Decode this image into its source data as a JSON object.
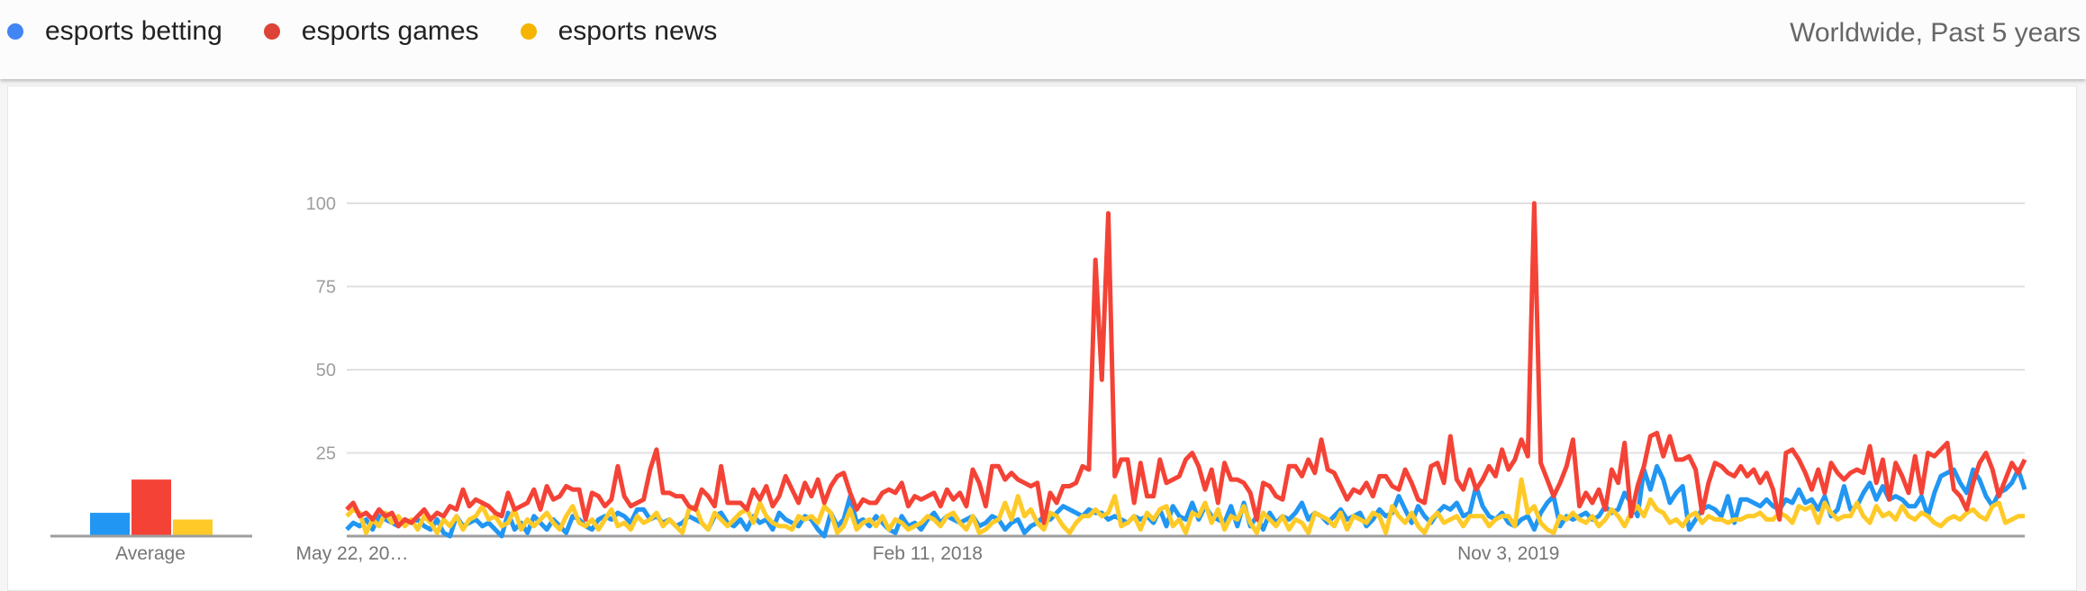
{
  "header": {
    "scope": "Worldwide, Past 5 years",
    "legend": [
      {
        "label": "esports betting",
        "color": "#4285F4"
      },
      {
        "label": "esports games",
        "color": "#DB4437"
      },
      {
        "label": "esports news",
        "color": "#F4B400"
      }
    ]
  },
  "chart_data": [
    {
      "type": "bar",
      "title": "",
      "categories": [
        "esports betting",
        "esports games",
        "esports news"
      ],
      "values": [
        7,
        17,
        5
      ],
      "xlabel": "Average",
      "colors": [
        "#2196F3",
        "#F44336",
        "#FFCA28"
      ]
    },
    {
      "type": "line",
      "title": "",
      "xlabel": "",
      "ylabel": "",
      "ylim": [
        0,
        100
      ],
      "yticks": [
        "25",
        "50",
        "75",
        "100"
      ],
      "grid": true,
      "x_start": "May 22, 2016",
      "x_interval": "week",
      "xtick_labels": [
        {
          "label": "May 22, 20…",
          "week_index": 0
        },
        {
          "label": "Feb 11, 2018",
          "week_index": 90
        },
        {
          "label": "Nov 3, 2019",
          "week_index": 180
        }
      ],
      "series": [
        {
          "name": "esports betting",
          "color": "#2196F3",
          "values": [
            2,
            4,
            3,
            5,
            2,
            6,
            5,
            4,
            3,
            5,
            4,
            5,
            3,
            2,
            5,
            1,
            0,
            6,
            3,
            4,
            5,
            3,
            4,
            2,
            0,
            7,
            2,
            4,
            1,
            6,
            4,
            2,
            5,
            3,
            1,
            6,
            5,
            3,
            2,
            5,
            6,
            5,
            7,
            6,
            4,
            8,
            8,
            5,
            6,
            4,
            5,
            3,
            4,
            6,
            5,
            4,
            2,
            6,
            7,
            4,
            3,
            5,
            2,
            6,
            4,
            5,
            2,
            7,
            5,
            4,
            3,
            6,
            5,
            2,
            0,
            7,
            3,
            5,
            12,
            4,
            5,
            3,
            6,
            4,
            2,
            1,
            6,
            3,
            4,
            2,
            5,
            7,
            4,
            6,
            5,
            4,
            5,
            6,
            3,
            4,
            6,
            5,
            2,
            4,
            5,
            1,
            3,
            4,
            6,
            5,
            7,
            9,
            8,
            7,
            6,
            8,
            7,
            7,
            5,
            6,
            5,
            4,
            6,
            5,
            6,
            4,
            8,
            3,
            9,
            6,
            5,
            10,
            5,
            9,
            6,
            5,
            4,
            9,
            3,
            10,
            3,
            6,
            2,
            7,
            4,
            6,
            5,
            7,
            10,
            5,
            7,
            6,
            4,
            6,
            8,
            5,
            6,
            7,
            3,
            5,
            8,
            6,
            7,
            12,
            8,
            4,
            9,
            6,
            4,
            7,
            9,
            8,
            10,
            6,
            7,
            15,
            9,
            6,
            5,
            7,
            4,
            3,
            5,
            6,
            2,
            7,
            10,
            12,
            3,
            6,
            5,
            6,
            7,
            5,
            6,
            9,
            7,
            8,
            13,
            10,
            6,
            20,
            14,
            21,
            17,
            10,
            13,
            15,
            2,
            5,
            8,
            9,
            8,
            6,
            12,
            4,
            11,
            11,
            10,
            9,
            11,
            9,
            8,
            11,
            10,
            14,
            10,
            11,
            8,
            12,
            6,
            8,
            15,
            8,
            9,
            13,
            16,
            11,
            15,
            11,
            12,
            11,
            9,
            9,
            12,
            6,
            13,
            18,
            19,
            20,
            16,
            13,
            20,
            17,
            12,
            9,
            13,
            14,
            16,
            20,
            14
          ]
        },
        {
          "name": "esports games",
          "color": "#F44336",
          "values": [
            8,
            10,
            6,
            7,
            5,
            8,
            6,
            7,
            3,
            5,
            4,
            6,
            8,
            5,
            7,
            6,
            9,
            8,
            14,
            9,
            11,
            10,
            9,
            7,
            6,
            13,
            8,
            9,
            10,
            14,
            8,
            15,
            11,
            12,
            15,
            14,
            14,
            5,
            13,
            12,
            9,
            11,
            21,
            12,
            9,
            10,
            11,
            20,
            26,
            13,
            13,
            12,
            12,
            9,
            8,
            14,
            12,
            9,
            21,
            10,
            10,
            10,
            8,
            14,
            11,
            15,
            9,
            12,
            18,
            14,
            10,
            16,
            12,
            17,
            10,
            15,
            18,
            19,
            13,
            8,
            11,
            10,
            10,
            13,
            14,
            13,
            16,
            9,
            12,
            11,
            12,
            13,
            9,
            14,
            11,
            13,
            9,
            20,
            16,
            9,
            21,
            21,
            17,
            19,
            17,
            16,
            15,
            16,
            4,
            13,
            10,
            15,
            15,
            16,
            21,
            20,
            83,
            47,
            97,
            18,
            23,
            23,
            10,
            22,
            12,
            12,
            23,
            16,
            17,
            18,
            23,
            25,
            21,
            14,
            20,
            10,
            22,
            17,
            17,
            16,
            13,
            5,
            16,
            15,
            12,
            11,
            21,
            21,
            18,
            23,
            19,
            29,
            20,
            19,
            15,
            11,
            14,
            13,
            16,
            12,
            18,
            18,
            15,
            14,
            20,
            16,
            11,
            10,
            21,
            22,
            16,
            30,
            17,
            14,
            20,
            14,
            17,
            21,
            18,
            26,
            20,
            23,
            29,
            24,
            100,
            22,
            17,
            12,
            16,
            21,
            29,
            9,
            13,
            10,
            14,
            8,
            20,
            16,
            28,
            6,
            15,
            21,
            30,
            31,
            24,
            30,
            23,
            23,
            24,
            20,
            7,
            16,
            22,
            21,
            19,
            18,
            21,
            18,
            20,
            16,
            19,
            14,
            5,
            25,
            26,
            23,
            19,
            14,
            20,
            13,
            22,
            19,
            17,
            19,
            20,
            19,
            27,
            16,
            23,
            11,
            22,
            18,
            13,
            24,
            13,
            25,
            24,
            26,
            28,
            14,
            12,
            8,
            16,
            22,
            25,
            20,
            12,
            17,
            22,
            19,
            23
          ]
        },
        {
          "name": "esports news",
          "color": "#FFCA28",
          "values": [
            6,
            8,
            7,
            1,
            5,
            3,
            7,
            4,
            6,
            3,
            5,
            2,
            6,
            4,
            1,
            5,
            3,
            6,
            2,
            5,
            6,
            9,
            5,
            6,
            3,
            4,
            8,
            2,
            5,
            3,
            5,
            7,
            4,
            2,
            6,
            9,
            4,
            3,
            5,
            2,
            5,
            8,
            3,
            4,
            2,
            6,
            4,
            5,
            7,
            3,
            5,
            3,
            1,
            8,
            9,
            4,
            2,
            7,
            5,
            3,
            5,
            7,
            8,
            4,
            10,
            6,
            4,
            3,
            3,
            2,
            6,
            5,
            6,
            4,
            9,
            7,
            1,
            3,
            8,
            2,
            4,
            5,
            3,
            6,
            2,
            5,
            4,
            2,
            3,
            4,
            6,
            5,
            3,
            6,
            7,
            4,
            2,
            6,
            1,
            2,
            4,
            5,
            10,
            5,
            12,
            6,
            8,
            4,
            2,
            7,
            6,
            3,
            1,
            4,
            6,
            6,
            8,
            6,
            7,
            12,
            3,
            4,
            6,
            2,
            7,
            5,
            8,
            9,
            3,
            5,
            1,
            7,
            6,
            10,
            4,
            8,
            2,
            6,
            5,
            9,
            4,
            1,
            7,
            5,
            3,
            6,
            2,
            5,
            4,
            1,
            7,
            6,
            5,
            3,
            7,
            2,
            6,
            5,
            4,
            7,
            6,
            1,
            9,
            6,
            4,
            7,
            3,
            1,
            5,
            7,
            4,
            5,
            6,
            3,
            6,
            6,
            6,
            3,
            5,
            6,
            6,
            3,
            17,
            7,
            9,
            4,
            2,
            1,
            6,
            5,
            7,
            5,
            4,
            6,
            3,
            5,
            8,
            6,
            3,
            7,
            9,
            6,
            11,
            8,
            7,
            4,
            5,
            3,
            6,
            7,
            4,
            6,
            5,
            5,
            4,
            5,
            5,
            6,
            6,
            7,
            5,
            5,
            7,
            6,
            4,
            9,
            8,
            9,
            4,
            10,
            7,
            5,
            6,
            6,
            10,
            6,
            4,
            9,
            6,
            7,
            5,
            9,
            6,
            5,
            7,
            6,
            4,
            3,
            5,
            6,
            5,
            7,
            8,
            6,
            5,
            9,
            10,
            4,
            5,
            6,
            6
          ]
        }
      ]
    }
  ]
}
